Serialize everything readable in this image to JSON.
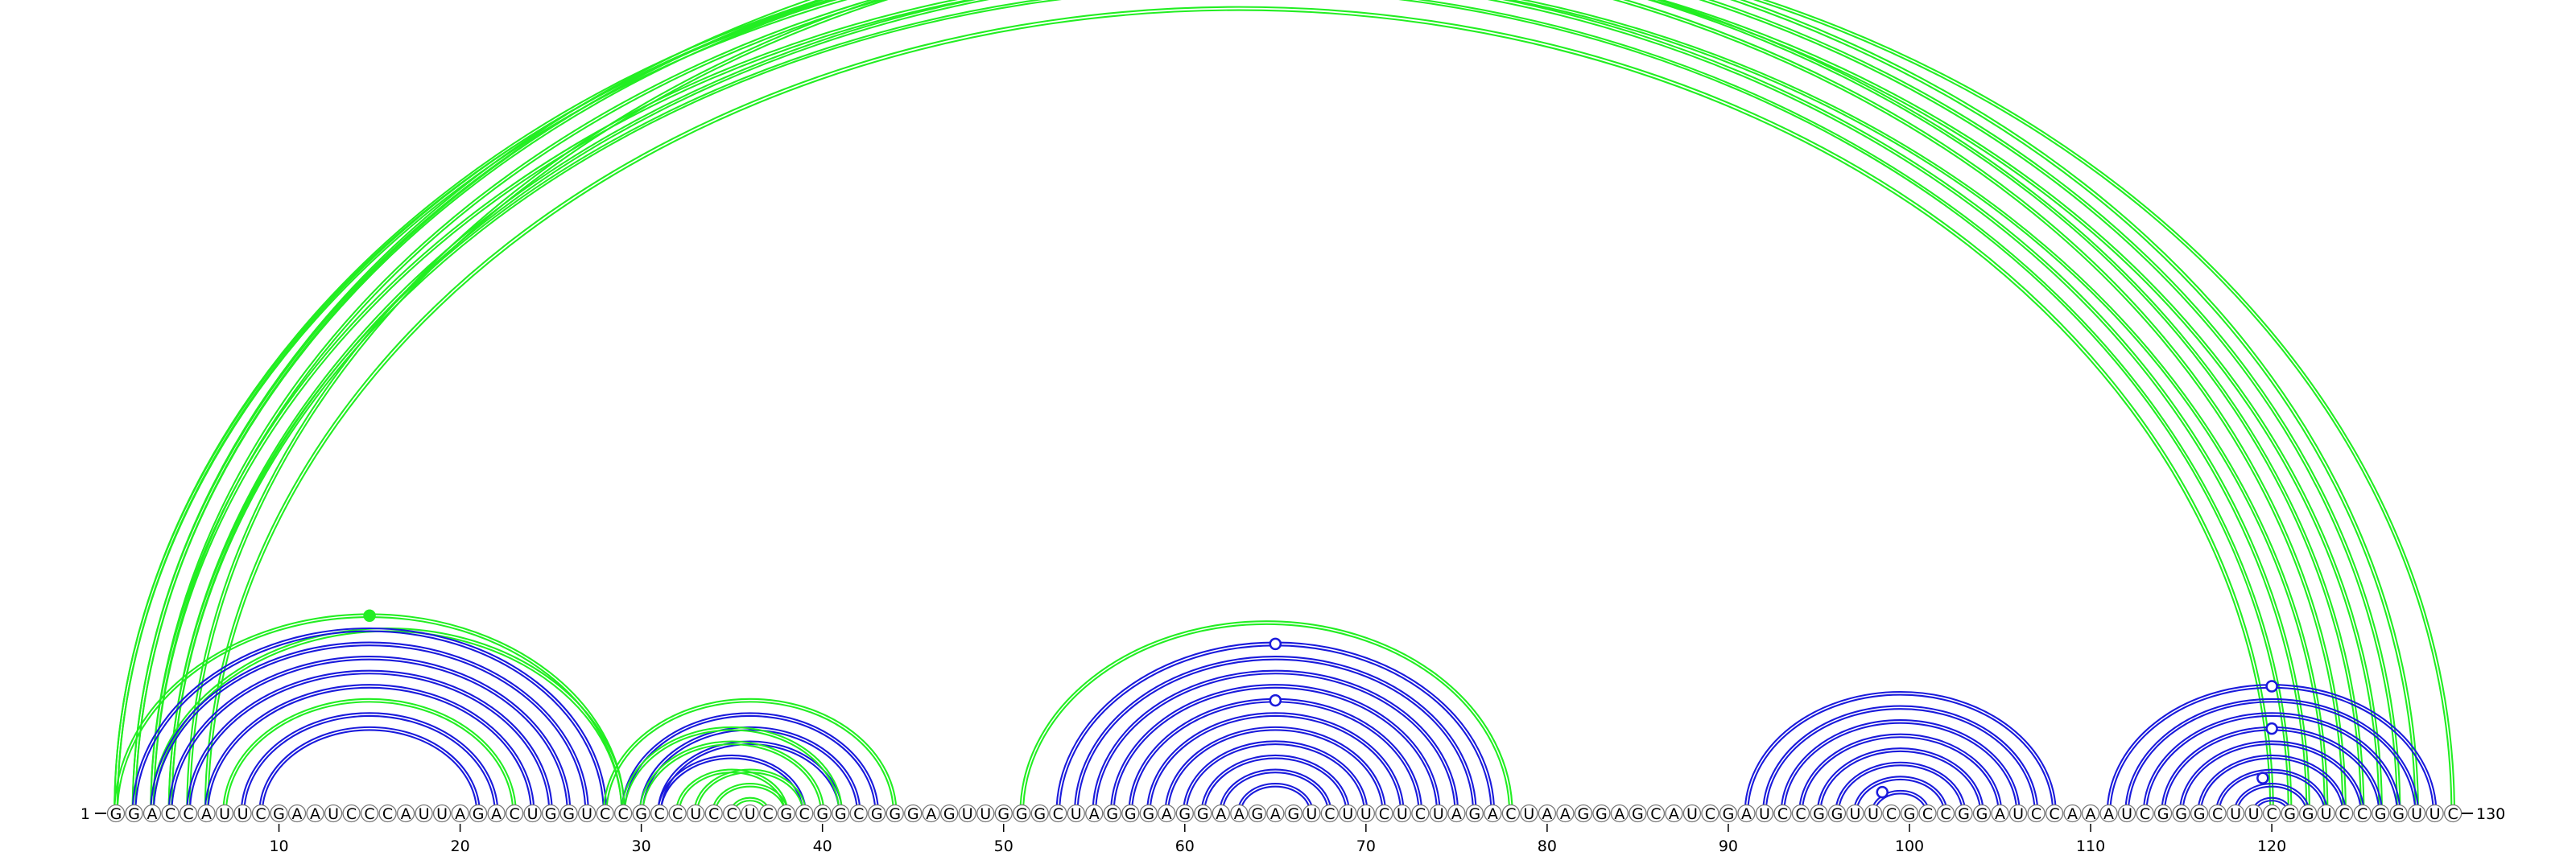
{
  "sequence": "GGACCAUUCGAAUCCCAUUAGACUGGUCCGCCUCCUCGCGGCGGGAGUUGGGCUAGGGAGGAAGAGUCUUCUCUAGACUAAGGAGCAUCGAUCCGGUUCGCCGGAUCCAAAUCGGGCUUCGGUCCGGUUC",
  "start_label": "1",
  "end_label": "130",
  "tick_labels": [
    "10",
    "20",
    "30",
    "40",
    "50",
    "60",
    "70",
    "80",
    "90",
    "100",
    "110",
    "120"
  ],
  "colors": {
    "blue": "#1a1adc",
    "green": "#22ee22",
    "outline": "#777777"
  },
  "arcs": [
    {
      "i": 1,
      "j": 124,
      "color": "green",
      "double": true
    },
    {
      "i": 1,
      "j": 125,
      "color": "green",
      "double": true
    },
    {
      "i": 2,
      "j": 127,
      "color": "green",
      "double": true
    },
    {
      "i": 2,
      "j": 128,
      "color": "green",
      "double": true
    },
    {
      "i": 3,
      "j": 122,
      "color": "green",
      "double": true
    },
    {
      "i": 3,
      "j": 126,
      "color": "green",
      "double": true
    },
    {
      "i": 4,
      "j": 121,
      "color": "green",
      "double": true
    },
    {
      "i": 4,
      "j": 123,
      "color": "green",
      "double": true
    },
    {
      "i": 5,
      "j": 130,
      "color": "green",
      "double": true
    },
    {
      "i": 6,
      "j": 120,
      "color": "green",
      "double": true
    },
    {
      "i": 1,
      "j": 29,
      "color": "green",
      "double": true
    },
    {
      "i": 3,
      "j": 29,
      "color": "green",
      "double": true
    },
    {
      "i": 2,
      "j": 28,
      "color": "blue",
      "double": true
    },
    {
      "i": 3,
      "j": 27,
      "color": "blue",
      "double": true
    },
    {
      "i": 4,
      "j": 26,
      "color": "blue",
      "double": true
    },
    {
      "i": 5,
      "j": 25,
      "color": "blue",
      "double": true
    },
    {
      "i": 6,
      "j": 24,
      "color": "blue",
      "double": true
    },
    {
      "i": 7,
      "j": 23,
      "color": "green",
      "double": true
    },
    {
      "i": 8,
      "j": 22,
      "color": "blue",
      "double": true
    },
    {
      "i": 9,
      "j": 21,
      "color": "blue",
      "double": true
    },
    {
      "i": 28,
      "j": 44,
      "color": "green",
      "double": true
    },
    {
      "i": 29,
      "j": 43,
      "color": "blue",
      "double": true
    },
    {
      "i": 30,
      "j": 42,
      "color": "blue",
      "double": true
    },
    {
      "i": 31,
      "j": 41,
      "color": "blue",
      "double": true
    },
    {
      "i": 29,
      "j": 41,
      "color": "green",
      "double": true
    },
    {
      "i": 30,
      "j": 40,
      "color": "green",
      "double": true
    },
    {
      "i": 31,
      "j": 39,
      "color": "blue",
      "double": true
    },
    {
      "i": 32,
      "j": 38,
      "color": "green",
      "double": true
    },
    {
      "i": 33,
      "j": 39,
      "color": "green",
      "double": true
    },
    {
      "i": 34,
      "j": 38,
      "color": "green",
      "double": true
    },
    {
      "i": 35,
      "j": 37,
      "color": "green",
      "double": true
    },
    {
      "i": 51,
      "j": 78,
      "color": "green",
      "double": true
    },
    {
      "i": 53,
      "j": 77,
      "color": "blue",
      "double": true
    },
    {
      "i": 54,
      "j": 76,
      "color": "blue",
      "double": true
    },
    {
      "i": 55,
      "j": 75,
      "color": "blue",
      "double": true
    },
    {
      "i": 56,
      "j": 74,
      "color": "blue",
      "double": true
    },
    {
      "i": 57,
      "j": 73,
      "color": "blue",
      "double": true
    },
    {
      "i": 58,
      "j": 72,
      "color": "blue",
      "double": true
    },
    {
      "i": 59,
      "j": 71,
      "color": "blue",
      "double": true
    },
    {
      "i": 60,
      "j": 70,
      "color": "blue",
      "double": true
    },
    {
      "i": 61,
      "j": 69,
      "color": "blue",
      "double": true
    },
    {
      "i": 62,
      "j": 68,
      "color": "blue",
      "double": true
    },
    {
      "i": 63,
      "j": 67,
      "color": "blue",
      "double": true
    },
    {
      "i": 91,
      "j": 108,
      "color": "blue",
      "double": true
    },
    {
      "i": 92,
      "j": 107,
      "color": "blue",
      "double": true
    },
    {
      "i": 93,
      "j": 106,
      "color": "blue",
      "double": true
    },
    {
      "i": 94,
      "j": 105,
      "color": "blue",
      "double": true
    },
    {
      "i": 95,
      "j": 104,
      "color": "blue",
      "double": true
    },
    {
      "i": 96,
      "j": 103,
      "color": "blue",
      "double": true
    },
    {
      "i": 97,
      "j": 102,
      "color": "blue",
      "double": true
    },
    {
      "i": 98,
      "j": 101,
      "color": "blue",
      "double": true
    },
    {
      "i": 111,
      "j": 129,
      "color": "blue",
      "double": true
    },
    {
      "i": 112,
      "j": 128,
      "color": "blue",
      "double": true
    },
    {
      "i": 113,
      "j": 127,
      "color": "blue",
      "double": true
    },
    {
      "i": 114,
      "j": 126,
      "color": "blue",
      "double": true
    },
    {
      "i": 115,
      "j": 125,
      "color": "blue",
      "double": true
    },
    {
      "i": 116,
      "j": 124,
      "color": "blue",
      "double": true
    },
    {
      "i": 117,
      "j": 123,
      "color": "blue",
      "double": true
    },
    {
      "i": 118,
      "j": 122,
      "color": "blue",
      "double": true
    },
    {
      "i": 119,
      "j": 121,
      "color": "blue",
      "double": true
    }
  ],
  "markers": [
    {
      "i": 1,
      "j": 130,
      "color": "green",
      "filled": false
    },
    {
      "i": 1,
      "j": 29,
      "color": "green",
      "filled": true
    },
    {
      "i": 53,
      "j": 77,
      "color": "blue",
      "filled": false
    },
    {
      "i": 57,
      "j": 73,
      "color": "blue",
      "filled": false
    },
    {
      "i": 97,
      "j": 100,
      "color": "blue",
      "filled": false
    },
    {
      "i": 111,
      "j": 129,
      "color": "blue",
      "filled": false
    },
    {
      "i": 114,
      "j": 126,
      "color": "blue",
      "filled": false
    },
    {
      "i": 117,
      "j": 122,
      "color": "blue",
      "filled": false
    }
  ]
}
